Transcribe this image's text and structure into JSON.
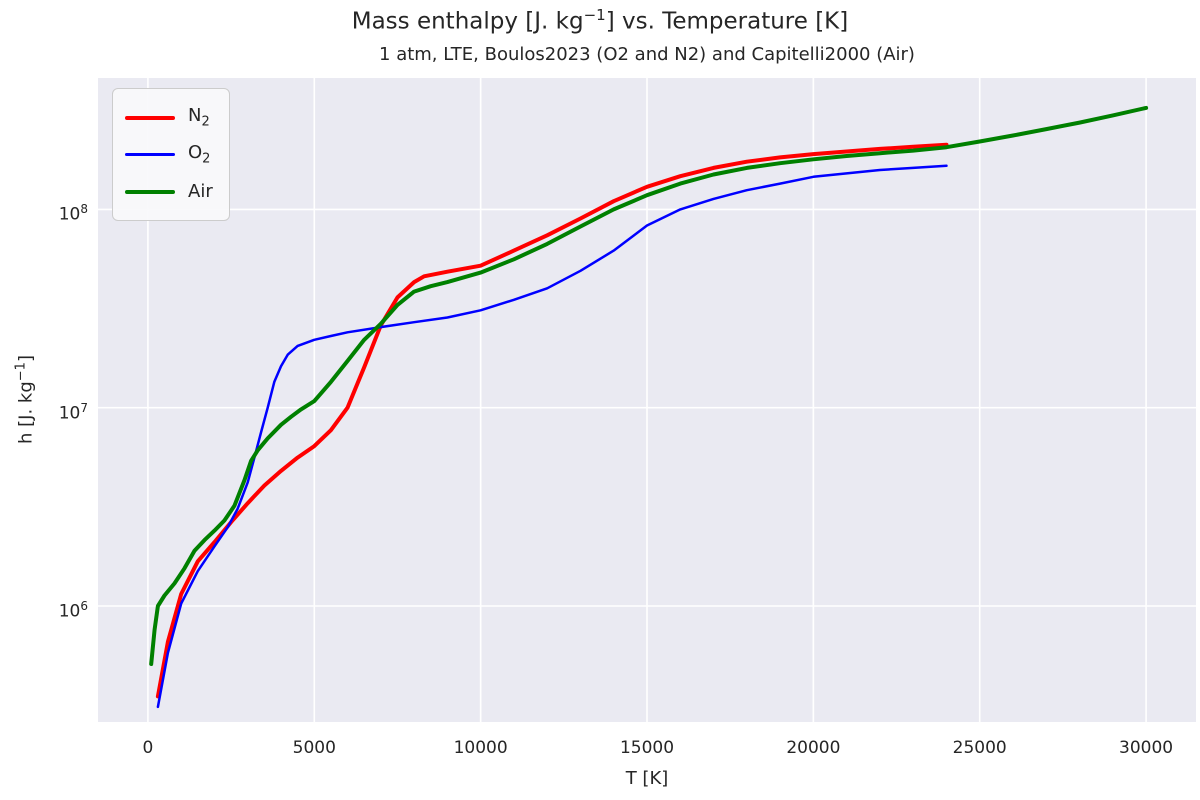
{
  "title": {
    "pre": "Mass enthalpy [J. kg",
    "sup": "−1",
    "post": "] vs. Temperature [K]"
  },
  "subtitle": "1 atm, LTE, Boulos2023 (O2 and N2) and Capitelli2000 (Air)",
  "ylabel": {
    "pre": "h [J. kg",
    "sup": "−1",
    "post": "]"
  },
  "colors": {
    "background_plot": "#eaeaf2",
    "grid": "#ffffff",
    "text": "#262626",
    "n2": "#ff0000",
    "o2": "#0000ff",
    "air": "#008000"
  },
  "chart_data": {
    "type": "line",
    "title": "Mass enthalpy [J. kg^-1] vs. Temperature [K]",
    "subtitle": "1 atm, LTE, Boulos2023 (O2 and N2) and Capitelli2000 (Air)",
    "xlabel": "T [K]",
    "ylabel": "h [J. kg^-1]",
    "grid": true,
    "x_axis": {
      "min": -1500,
      "max": 31500,
      "ticks": [
        0,
        5000,
        10000,
        15000,
        20000,
        25000,
        30000
      ]
    },
    "y_axis": {
      "scale": "log",
      "min": 260000.0,
      "max": 460000000.0,
      "tick_exponents": [
        6,
        7,
        8
      ],
      "tick_base": "10"
    },
    "legend": {
      "position": "upper left"
    },
    "series": [
      {
        "name": "N2",
        "label_base": "N",
        "label_sub": "2",
        "color": "#ff0000",
        "line_width": 4,
        "x": [
          300,
          600,
          1000,
          1500,
          2000,
          2500,
          3000,
          3500,
          4000,
          4500,
          5000,
          5500,
          6000,
          6500,
          7000,
          7500,
          8000,
          8300,
          9000,
          10000,
          11000,
          12000,
          13000,
          14000,
          15000,
          16000,
          17000,
          18000,
          19000,
          20000,
          21000,
          22000,
          23000,
          24000
        ],
        "y": [
          350000.0,
          660000.0,
          1150000.0,
          1680000.0,
          2100000.0,
          2650000.0,
          3300000.0,
          4050000.0,
          4800000.0,
          5600000.0,
          6400000.0,
          7700000.0,
          10000000.0,
          16000000.0,
          26000000.0,
          36000000.0,
          43000000.0,
          46000000.0,
          48500000.0,
          52000000.0,
          62000000.0,
          74000000.0,
          90000000.0,
          110000000.0,
          130000000.0,
          147000000.0,
          162000000.0,
          174000000.0,
          183000000.0,
          190000000.0,
          196000000.0,
          202000000.0,
          207000000.0,
          212000000.0
        ]
      },
      {
        "name": "O2",
        "label_base": "O",
        "label_sub": "2",
        "color": "#0000ff",
        "line_width": 2.5,
        "x": [
          300,
          600,
          1000,
          1500,
          2000,
          2400,
          2700,
          3000,
          3200,
          3400,
          3600,
          3800,
          4000,
          4200,
          4500,
          5000,
          5500,
          6000,
          7000,
          8000,
          9000,
          10000,
          11000,
          12000,
          13000,
          14000,
          15000,
          16000,
          17000,
          18000,
          19000,
          20000,
          21000,
          22000,
          23000,
          24000
        ],
        "y": [
          310000.0,
          580000.0,
          1030000.0,
          1500000.0,
          2000000.0,
          2500000.0,
          3100000.0,
          4200000.0,
          5600000.0,
          7500000.0,
          10000000.0,
          13500000.0,
          16200000.0,
          18500000.0,
          20500000.0,
          22000000.0,
          23000000.0,
          24000000.0,
          25500000.0,
          27000000.0,
          28500000.0,
          31000000.0,
          35000000.0,
          40000000.0,
          49000000.0,
          62000000.0,
          83000000.0,
          100000000.0,
          113000000.0,
          125000000.0,
          135000000.0,
          146000000.0,
          152000000.0,
          158000000.0,
          162000000.0,
          166000000.0
        ]
      },
      {
        "name": "Air",
        "label_base": "Air",
        "label_sub": "",
        "color": "#008000",
        "line_width": 4,
        "x": [
          100,
          200,
          300,
          500,
          800,
          1100,
          1400,
          1700,
          2000,
          2300,
          2600,
          2900,
          3100,
          3300,
          3600,
          4000,
          4300,
          4600,
          5000,
          5500,
          6000,
          6500,
          7000,
          7500,
          8000,
          8500,
          9000,
          10000,
          11000,
          12000,
          13000,
          14000,
          15000,
          16000,
          17000,
          18000,
          19000,
          20000,
          21000,
          22000,
          23000,
          24000,
          25000,
          26000,
          27000,
          28000,
          29000,
          30000
        ],
        "y": [
          510000.0,
          760000.0,
          1000000.0,
          1130000.0,
          1300000.0,
          1550000.0,
          1900000.0,
          2150000.0,
          2400000.0,
          2700000.0,
          3200000.0,
          4300000.0,
          5400000.0,
          6100000.0,
          7000000.0,
          8200000.0,
          9000000.0,
          9800000.0,
          10800000.0,
          13500000.0,
          17200000.0,
          22000000.0,
          26500000.0,
          33000000.0,
          38500000.0,
          41000000.0,
          43000000.0,
          48000000.0,
          56000000.0,
          67000000.0,
          82000000.0,
          100000000.0,
          118000000.0,
          135000000.0,
          150000000.0,
          162000000.0,
          171000000.0,
          179000000.0,
          186000000.0,
          192000000.0,
          198000000.0,
          206000000.0,
          220000000.0,
          236000000.0,
          254000000.0,
          274000000.0,
          298000000.0,
          325000000.0
        ]
      }
    ]
  }
}
